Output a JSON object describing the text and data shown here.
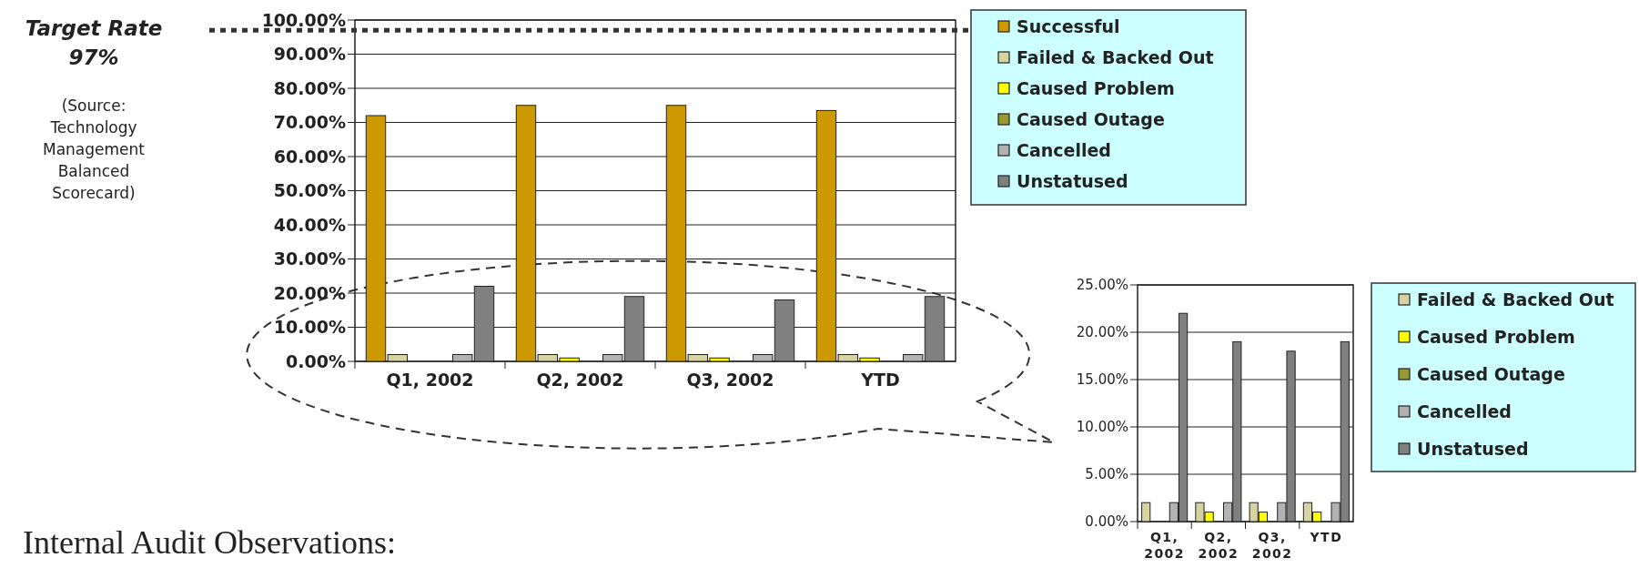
{
  "chart_data": [
    {
      "type": "bar",
      "categories": [
        "Q1, 2002",
        "Q2, 2002",
        "Q3, 2002",
        "YTD"
      ],
      "series": [
        {
          "name": "Successful",
          "color": "#cc9900",
          "values": [
            72,
            75,
            75,
            73.5
          ]
        },
        {
          "name": "Failed & Backed Out",
          "color": "#d6d3a0",
          "values": [
            2,
            2,
            2,
            2
          ]
        },
        {
          "name": "Caused Problem",
          "color": "#ffff00",
          "values": [
            0,
            1,
            1,
            1
          ]
        },
        {
          "name": "Caused Outage",
          "color": "#999933",
          "values": [
            0,
            0,
            0,
            0
          ]
        },
        {
          "name": "Cancelled",
          "color": "#b2b2b2",
          "values": [
            2,
            2,
            2,
            2
          ]
        },
        {
          "name": "Unstatused",
          "color": "#808080",
          "values": [
            22,
            19,
            18,
            19
          ]
        }
      ],
      "ylim": [
        0,
        100
      ],
      "yticks": [
        {
          "value": 0,
          "label": "0.00%"
        },
        {
          "value": 10,
          "label": "10.00%"
        },
        {
          "value": 20,
          "label": "20.00%"
        },
        {
          "value": 30,
          "label": "30.00%"
        },
        {
          "value": 40,
          "label": "40.00%"
        },
        {
          "value": 50,
          "label": "50.00%"
        },
        {
          "value": 60,
          "label": "60.00%"
        },
        {
          "value": 70,
          "label": "70.00%"
        },
        {
          "value": 80,
          "label": "80.00%"
        },
        {
          "value": 90,
          "label": "90.00%"
        },
        {
          "value": 100,
          "label": "100.00%"
        }
      ],
      "grid": "y",
      "legend": "right",
      "ref_lines": [
        {
          "axis": "y",
          "value": 97,
          "label": "Target Rate 97%",
          "color": "#333333",
          "line_style": "dotted"
        }
      ],
      "annotations": [
        "(Source: Technology Management Balanced Scorecard)",
        "Internal Audit Observations:"
      ]
    },
    {
      "type": "bar",
      "categories": [
        "Q1, 2002",
        "Q2, 2002",
        "Q3, 2002",
        "YTD"
      ],
      "series": [
        {
          "name": "Failed & Backed Out",
          "color": "#d6d3a0",
          "values": [
            2,
            2,
            2,
            2
          ]
        },
        {
          "name": "Caused Problem",
          "color": "#ffff00",
          "values": [
            0,
            1,
            1,
            1
          ]
        },
        {
          "name": "Caused Outage",
          "color": "#999933",
          "values": [
            0,
            0,
            0,
            0
          ]
        },
        {
          "name": "Cancelled",
          "color": "#b2b2b2",
          "values": [
            2,
            2,
            2,
            2
          ]
        },
        {
          "name": "Unstatused",
          "color": "#808080",
          "values": [
            22,
            19,
            18,
            19
          ]
        }
      ],
      "ylim": [
        0,
        25
      ],
      "yticks": [
        {
          "value": 0,
          "label": "0.00%"
        },
        {
          "value": 5,
          "label": "5.00%"
        },
        {
          "value": 10,
          "label": "10.00%"
        },
        {
          "value": 15,
          "label": "15.00%"
        },
        {
          "value": 20,
          "label": "20.00%"
        },
        {
          "value": 25,
          "label": "25.00%"
        }
      ],
      "grid": "y",
      "legend": "right"
    }
  ]
}
